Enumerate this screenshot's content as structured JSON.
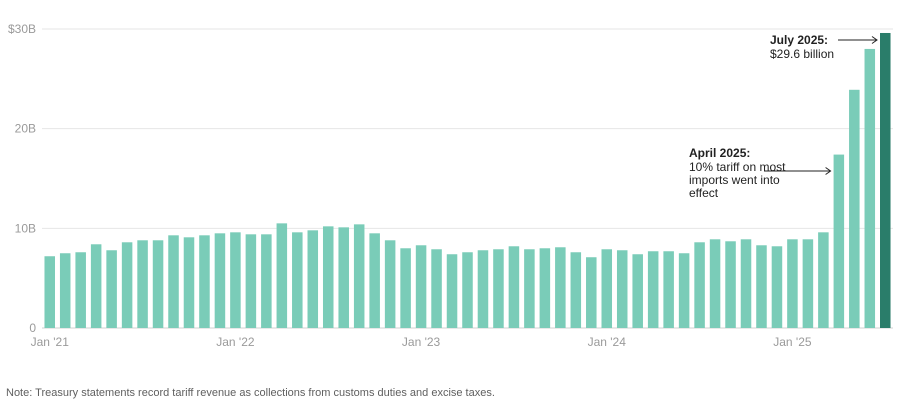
{
  "chart_data": {
    "type": "bar",
    "title": "",
    "xlabel": "",
    "ylabel": "",
    "ylim": [
      0,
      30
    ],
    "y_ticks": [
      {
        "value": 0,
        "label": "0"
      },
      {
        "value": 10,
        "label": "10B"
      },
      {
        "value": 20,
        "label": "20B"
      },
      {
        "value": 30,
        "label": "$30B"
      }
    ],
    "x_tick_labels": [
      {
        "index": 0,
        "label": "Jan '21"
      },
      {
        "index": 12,
        "label": "Jan '22"
      },
      {
        "index": 24,
        "label": "Jan '23"
      },
      {
        "index": 36,
        "label": "Jan '24"
      },
      {
        "index": 48,
        "label": "Jan '25"
      }
    ],
    "grid": true,
    "colors": {
      "bar": "#7accb8",
      "highlight": "#2a7d6a",
      "grid": "#e6e6e6",
      "axis_text": "#9a9a9a"
    },
    "series": [
      {
        "values": [
          7.2,
          7.5,
          7.6,
          8.4,
          7.8,
          8.6,
          8.8,
          8.8,
          9.3,
          9.1,
          9.3,
          9.5,
          9.6,
          9.4,
          9.4,
          10.5,
          9.6,
          9.8,
          10.2,
          10.1,
          10.4,
          9.5,
          8.8,
          8.0,
          8.3,
          7.9,
          7.4,
          7.6,
          7.8,
          7.9,
          8.2,
          7.9,
          8.0,
          8.1,
          7.6,
          7.1,
          7.9,
          7.8,
          7.4,
          7.7,
          7.7,
          7.5,
          8.6,
          8.9,
          8.7,
          8.9,
          8.3,
          8.2,
          8.9,
          8.9,
          9.6,
          17.4,
          23.9,
          28.0,
          29.6
        ]
      }
    ],
    "highlight_index": 54,
    "annotations": [
      {
        "bar_index": 54,
        "title": "July 2025:",
        "lines": [
          "$29.6 billion"
        ]
      },
      {
        "bar_index": 51,
        "title": "April 2025:",
        "lines": [
          "10% tariff on most",
          "imports went into",
          "effect"
        ]
      }
    ]
  },
  "footer": {
    "note": "Note: Treasury statements record tariff revenue as collections from customs duties and excise taxes."
  }
}
